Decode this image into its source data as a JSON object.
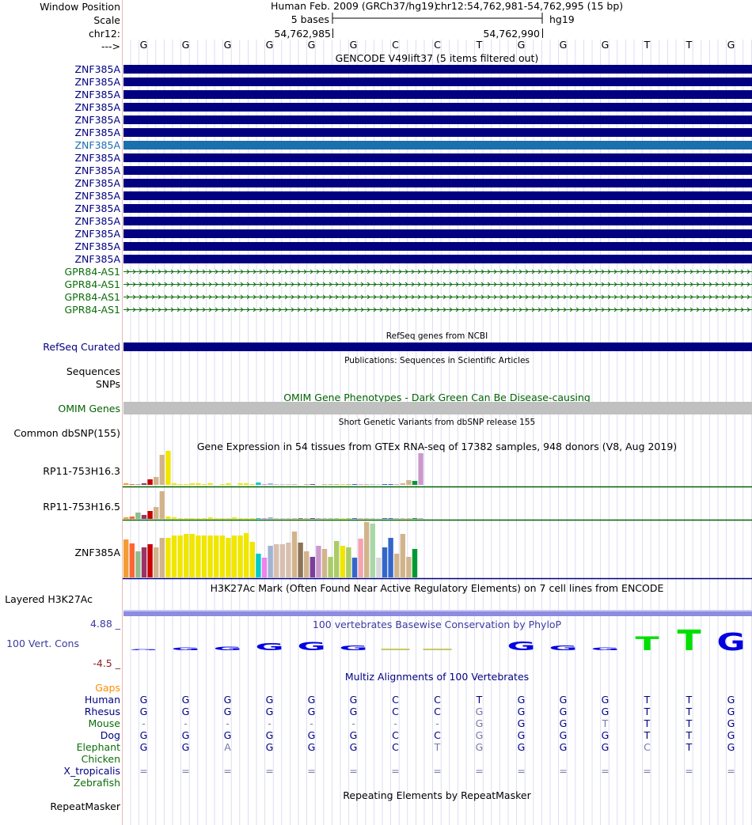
{
  "ruler": {
    "labels": [
      "Window Position",
      "Scale",
      "chr12:",
      "--->"
    ],
    "assembly_text": "Human Feb. 2009 (GRCh37/hg19)",
    "position_text": "chr12:54,762,981-54,762,995 (15 bp)",
    "scale_text": "5 bases",
    "db": "hg19",
    "coord_left": "54,762,985",
    "coord_right": "54,762,990",
    "bases": [
      "G",
      "G",
      "G",
      "G",
      "G",
      "G",
      "C",
      "C",
      "T",
      "G",
      "G",
      "G",
      "T",
      "T",
      "G"
    ]
  },
  "gencode": {
    "title": "GENCODE V49lift37 (5 items filtered out)",
    "genes": [
      "ZNF385A",
      "ZNF385A",
      "ZNF385A",
      "ZNF385A",
      "ZNF385A",
      "ZNF385A",
      "ZNF385A",
      "ZNF385A",
      "ZNF385A",
      "ZNF385A",
      "ZNF385A",
      "ZNF385A",
      "ZNF385A",
      "ZNF385A",
      "ZNF385A",
      "ZNF385A",
      "GPR84-AS1",
      "GPR84-AS1",
      "GPR84-AS1",
      "GPR84-AS1"
    ],
    "highlighted_index": 6
  },
  "refseq": {
    "title": "RefSeq genes from NCBI",
    "label": "RefSeq Curated"
  },
  "publications": {
    "title": "Publications: Sequences in Scientific Articles",
    "labels": [
      "Sequences",
      "SNPs"
    ]
  },
  "omim": {
    "title": "OMIM Gene Phenotypes - Dark Green Can Be Disease-causing",
    "label": "OMIM Genes"
  },
  "dbsnp": {
    "title": "Short Genetic Variants from dbSNP release 155",
    "label": "Common dbSNP(155)"
  },
  "gtex": {
    "title": "Gene Expression in 54 tissues from GTEx RNA-seq of 17382 samples, 948 donors (V8, Aug 2019)",
    "genes": [
      "RP11-753H16.3",
      "RP11-753H16.5",
      "ZNF385A"
    ]
  },
  "h3k27ac": {
    "title": "H3K27Ac Mark (Often Found Near Active Regulatory Elements) on 7 cell lines from ENCODE",
    "label": "Layered H3K27Ac"
  },
  "phylop": {
    "title": "100 vertebrates Basewise Conservation by PhyloP",
    "label": "100 Vert. Cons",
    "max": "4.88 _",
    "min": "-4.5 _"
  },
  "multiz": {
    "title": "Multiz Alignments of 100 Vertebrates",
    "gaps_label": "Gaps",
    "species": [
      {
        "name": "Human",
        "bases": [
          "G",
          "G",
          "G",
          "G",
          "G",
          "G",
          "C",
          "C",
          "T",
          "G",
          "G",
          "G",
          "T",
          "T",
          "G"
        ]
      },
      {
        "name": "Rhesus",
        "bases": [
          "G",
          "G",
          "G",
          "G",
          "G",
          "G",
          "C",
          "C",
          "G",
          "G",
          "G",
          "G",
          "T",
          "T",
          "G"
        ]
      },
      {
        "name": "Mouse",
        "bases": [
          "-",
          "-",
          "-",
          "-",
          "-",
          "-",
          "-",
          "-",
          "G",
          "G",
          "G",
          "T",
          "T",
          "T",
          "G"
        ]
      },
      {
        "name": "Dog",
        "bases": [
          "G",
          "G",
          "G",
          "G",
          "G",
          "G",
          "C",
          "C",
          "G",
          "G",
          "G",
          "G",
          "T",
          "T",
          "G"
        ]
      },
      {
        "name": "Elephant",
        "bases": [
          "G",
          "G",
          "A",
          "G",
          "G",
          "G",
          "C",
          "T",
          "G",
          "G",
          "G",
          "G",
          "C",
          "T",
          "G"
        ]
      },
      {
        "name": "Chicken",
        "bases": []
      },
      {
        "name": "X_tropicalis",
        "bases": [
          "=",
          "=",
          "=",
          "=",
          "=",
          "=",
          "=",
          "=",
          "=",
          "=",
          "=",
          "=",
          "=",
          "=",
          "="
        ]
      },
      {
        "name": "Zebrafish",
        "bases": []
      }
    ]
  },
  "repeatmasker": {
    "title": "Repeating Elements by RepeatMasker",
    "label": "RepeatMasker"
  }
}
